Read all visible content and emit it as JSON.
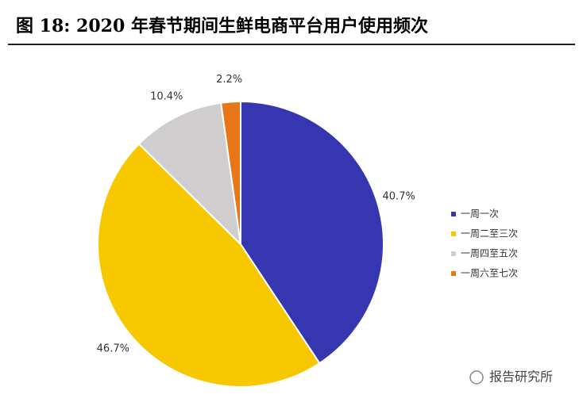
{
  "chart_data": {
    "type": "pie",
    "title": "图 18: 2020 年春节期间生鲜电商平台用户使用频次",
    "categories": [
      "一周一次",
      "一周二至三次",
      "一周四至五次",
      "一周六至七次"
    ],
    "values": [
      40.7,
      46.7,
      10.4,
      2.2
    ],
    "value_labels": [
      "40.7%",
      "46.7%",
      "10.4%",
      "2.2%"
    ],
    "colors": [
      "#3636b0",
      "#f7c800",
      "#cfcdcd",
      "#e8771a"
    ],
    "legend": "right"
  },
  "watermark": "报告研究所"
}
